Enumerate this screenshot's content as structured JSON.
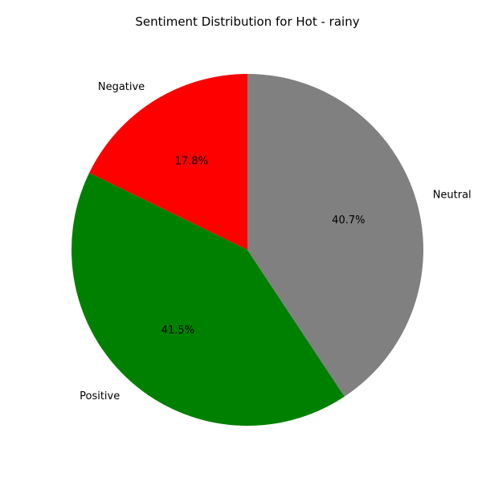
{
  "chart_data": {
    "type": "pie",
    "title": "Sentiment Distribution for Hot - rainy",
    "start_angle_deg": 90,
    "direction": "counterclockwise",
    "slices": [
      {
        "label": "Negative",
        "value": 17.8,
        "pct_label": "17.8%",
        "color": "#ff0000"
      },
      {
        "label": "Positive",
        "value": 41.5,
        "pct_label": "41.5%",
        "color": "#008000"
      },
      {
        "label": "Neutral",
        "value": 40.7,
        "pct_label": "40.7%",
        "color": "#808080"
      }
    ]
  }
}
